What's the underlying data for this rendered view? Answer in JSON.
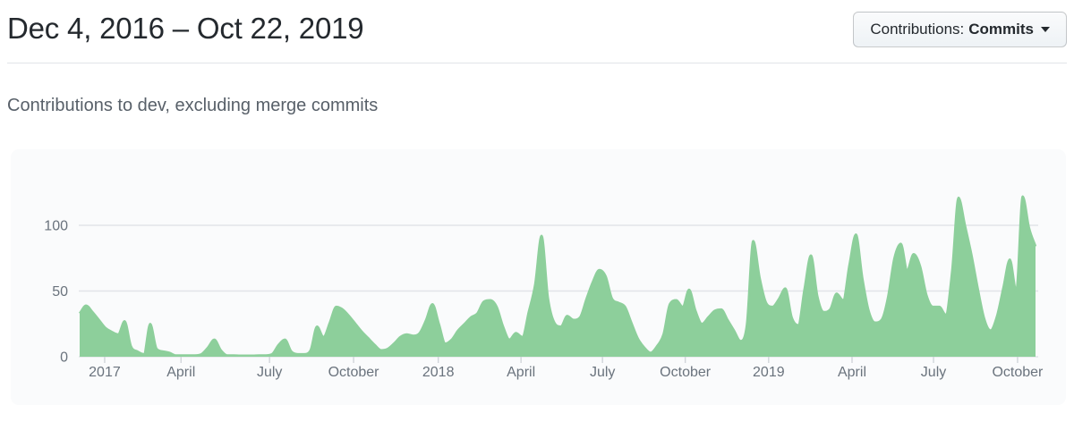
{
  "header": {
    "title": "Dec 4, 2016 – Oct 22, 2019",
    "contributions_button": {
      "label_prefix": "Contributions:",
      "selected": "Commits"
    }
  },
  "subtitle": "Contributions to dev, excluding merge commits",
  "chart_data": {
    "type": "area",
    "title": "Contributions to dev, excluding merge commits",
    "series_name": "Commits per week",
    "interval": "weekly",
    "x_start": "2016-12-04",
    "x_end": "2019-10-22",
    "ylim": [
      0,
      130
    ],
    "y_ticks": [
      0,
      50,
      100
    ],
    "grid": true,
    "legend": "none",
    "x_ticks": [
      {
        "label": "2017",
        "week": 3.9
      },
      {
        "label": "April",
        "week": 15.8
      },
      {
        "label": "July",
        "week": 29.6
      },
      {
        "label": "October",
        "week": 42.7
      },
      {
        "label": "2018",
        "week": 55.9
      },
      {
        "label": "April",
        "week": 68.8
      },
      {
        "label": "July",
        "week": 81.5
      },
      {
        "label": "October",
        "week": 94.4
      },
      {
        "label": "2019",
        "week": 107.4
      },
      {
        "label": "April",
        "week": 120.4
      },
      {
        "label": "July",
        "week": 133.1
      },
      {
        "label": "October",
        "week": 146.2
      }
    ],
    "values": [
      33,
      39,
      34,
      28,
      22,
      19,
      17,
      27,
      8,
      4,
      2,
      25,
      6,
      4,
      3,
      1,
      1,
      1,
      1,
      2,
      7,
      13,
      5,
      1,
      1,
      0,
      0,
      0,
      1,
      1,
      2,
      9,
      13,
      4,
      2,
      2,
      5,
      23,
      15,
      26,
      38,
      36,
      31,
      25,
      19,
      14,
      9,
      5,
      6,
      10,
      15,
      17,
      16,
      18,
      28,
      40,
      25,
      10,
      13,
      20,
      25,
      30,
      33,
      42,
      43,
      38,
      23,
      13,
      18,
      15,
      34,
      55,
      92,
      45,
      26,
      23,
      31,
      28,
      30,
      44,
      57,
      66,
      61,
      44,
      41,
      38,
      26,
      14,
      7,
      3,
      8,
      17,
      40,
      43,
      38,
      51,
      35,
      25,
      30,
      35,
      36,
      28,
      20,
      12,
      24,
      88,
      60,
      41,
      38,
      44,
      52,
      30,
      24,
      52,
      77,
      46,
      34,
      36,
      48,
      43,
      70,
      93,
      60,
      35,
      26,
      28,
      45,
      75,
      86,
      66,
      78,
      69,
      47,
      38,
      38,
      32,
      65,
      121,
      100,
      78,
      52,
      29,
      20,
      31,
      53,
      74,
      50,
      122,
      98,
      84
    ],
    "colors": {
      "area_fill": "#8dcf9b",
      "grid_line": "#e1e4e8",
      "tick_line": "#d1d5da",
      "axis_text": "#6a737d",
      "background": "#fafbfc"
    }
  }
}
